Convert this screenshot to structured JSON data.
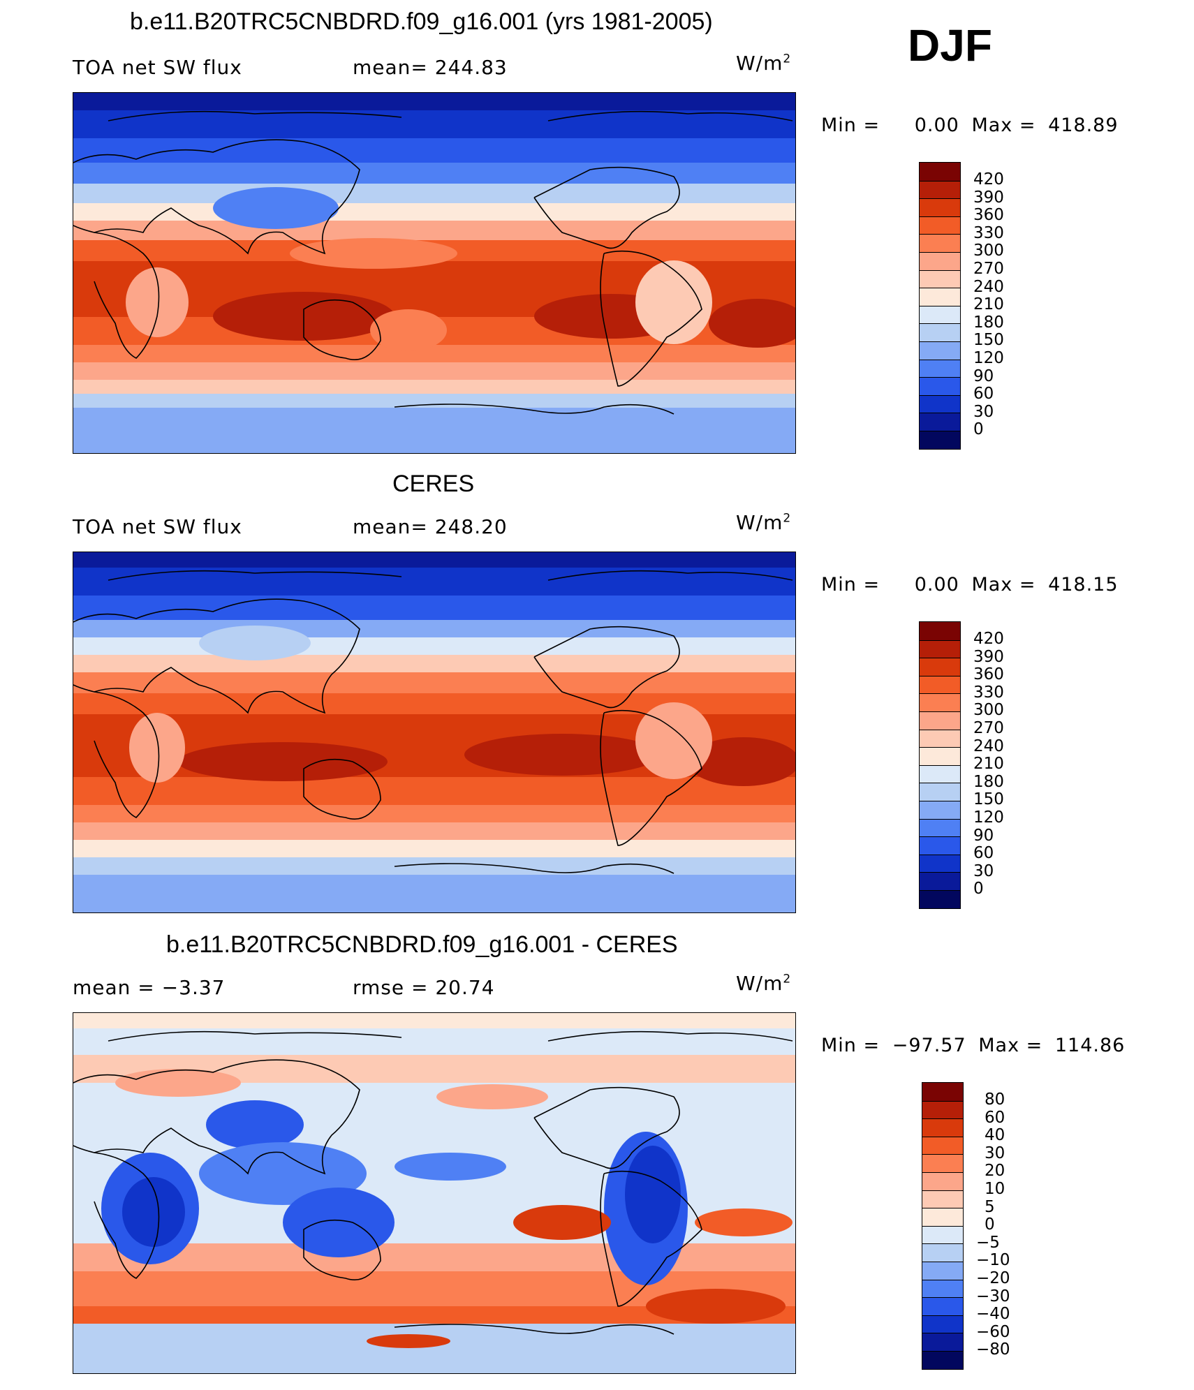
{
  "season": "DJF",
  "units_label": "W/m",
  "units_sup": "2",
  "panels": [
    {
      "title": "b.e11.B20TRC5CNBDRD.f09_g16.001 (yrs 1981-2005)",
      "left_label": "TOA net SW flux",
      "center_label": "mean=  244.83",
      "min_label": "Min  =",
      "min_value": "0.00",
      "max_label": "Max  =",
      "max_value": "418.89",
      "colorbar_ticks": [
        "420",
        "390",
        "360",
        "330",
        "300",
        "270",
        "240",
        "210",
        "180",
        "150",
        "120",
        "90",
        "60",
        "30",
        "0"
      ]
    },
    {
      "title": "CERES",
      "left_label": "TOA net SW flux",
      "center_label": "mean=  248.20",
      "min_label": "Min  =",
      "min_value": "0.00",
      "max_label": "Max  =",
      "max_value": "418.15",
      "colorbar_ticks": [
        "420",
        "390",
        "360",
        "330",
        "300",
        "270",
        "240",
        "210",
        "180",
        "150",
        "120",
        "90",
        "60",
        "30",
        "0"
      ]
    },
    {
      "title": "b.e11.B20TRC5CNBDRD.f09_g16.001 - CERES",
      "left_label": "mean =   −3.37",
      "center_label": "rmse =   20.74",
      "min_label": "Min  =",
      "min_value": "−97.57",
      "max_label": "Max  =",
      "max_value": "114.86",
      "colorbar_ticks": [
        "80",
        "60",
        "40",
        "30",
        "20",
        "10",
        "5",
        "0",
        "−5",
        "−10",
        "−20",
        "−30",
        "−40",
        "−60",
        "−80"
      ]
    }
  ],
  "colors": {
    "scale": [
      "#7a0403",
      "#b51f08",
      "#d93a0c",
      "#f25c27",
      "#fb7f52",
      "#fca68a",
      "#fdcab4",
      "#fde9da",
      "#dce9f8",
      "#b7d0f3",
      "#85aaf5",
      "#4f80f4",
      "#2a58ea",
      "#1034c9",
      "#0a1a9a",
      "#02075e"
    ],
    "coast": "#000000"
  }
}
